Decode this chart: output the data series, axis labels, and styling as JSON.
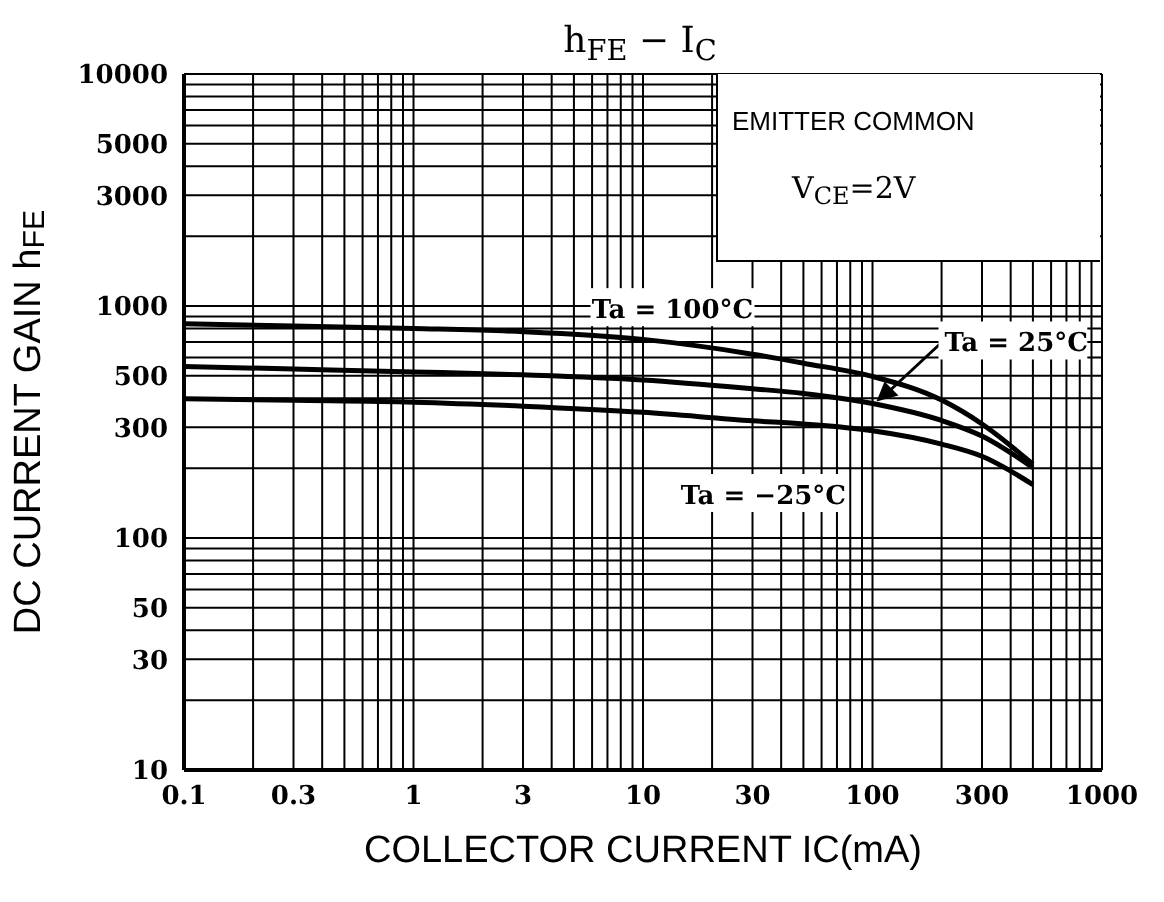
{
  "chart_data": {
    "type": "line",
    "title": "h$_{FE}$ − I$_{C}$",
    "xlabel": "COLLECTOR CURRENT IC(mA)",
    "ylabel": "DC CURRENT GAIN h$_{FE}$",
    "annotations": [
      "EMITTER COMMON",
      "V$_{CE}$=2V"
    ],
    "x": [
      0.1,
      0.3,
      1,
      3,
      10,
      30,
      50,
      100,
      200,
      300,
      500
    ],
    "series": [
      {
        "name": "Ta = 100°C",
        "color": "#000000",
        "values": [
          838,
          820,
          800,
          775,
          718,
          620,
          567,
          497,
          393,
          310,
          208
        ]
      },
      {
        "name": "Ta = 25°C",
        "color": "#000000",
        "values": [
          549,
          535,
          520,
          505,
          480,
          440,
          420,
          380,
          321,
          275,
          201
        ]
      },
      {
        "name": "Ta = −25°C",
        "color": "#000000",
        "values": [
          398,
          392,
          385,
          370,
          348,
          320,
          310,
          290,
          254,
          225,
          170
        ]
      }
    ],
    "log": "xy",
    "xlim": [
      0.1,
      1000
    ],
    "ylim": [
      10,
      10000
    ],
    "xticks": [
      0.1,
      {
        "value": 0.2,
        "label": null
      },
      0.3,
      {
        "value": 0.4,
        "label": null
      },
      {
        "value": 0.5,
        "label": null
      },
      {
        "value": 0.6,
        "label": null
      },
      {
        "value": 0.7,
        "label": null
      },
      {
        "value": 0.8,
        "label": null
      },
      {
        "value": 0.9,
        "label": null
      },
      1,
      {
        "value": 2,
        "label": null
      },
      3,
      {
        "value": 4,
        "label": null
      },
      {
        "value": 5,
        "label": null
      },
      {
        "value": 6,
        "label": null
      },
      {
        "value": 7,
        "label": null
      },
      {
        "value": 8,
        "label": null
      },
      {
        "value": 9,
        "label": null
      },
      10,
      {
        "value": 20,
        "label": null
      },
      30,
      {
        "value": 40,
        "label": null
      },
      {
        "value": 50,
        "label": null
      },
      {
        "value": 60,
        "label": null
      },
      {
        "value": 70,
        "label": null
      },
      {
        "value": 80,
        "label": null
      },
      {
        "value": 90,
        "label": null
      },
      100,
      {
        "value": 200,
        "label": null
      },
      300,
      {
        "value": 400,
        "label": null
      },
      {
        "value": 500,
        "label": null
      },
      {
        "value": 600,
        "label": null
      },
      {
        "value": 700,
        "label": null
      },
      {
        "value": 800,
        "label": null
      },
      {
        "value": 900,
        "label": null
      },
      1000
    ],
    "yticks": [
      10,
      {
        "value": 20,
        "label": null
      },
      30,
      {
        "value": 40,
        "label": null
      },
      50,
      {
        "value": 60,
        "label": null
      },
      {
        "value": 70,
        "label": null
      },
      {
        "value": 80,
        "label": null
      },
      {
        "value": 90,
        "label": null
      },
      100,
      {
        "value": 200,
        "label": null
      },
      300,
      {
        "value": 400,
        "label": null
      },
      500,
      {
        "value": 600,
        "label": null
      },
      {
        "value": 700,
        "label": null
      },
      {
        "value": 800,
        "label": null
      },
      {
        "value": 900,
        "label": null
      },
      1000,
      {
        "value": 2000,
        "label": null
      },
      3000,
      {
        "value": 4000,
        "label": null
      },
      5000,
      {
        "value": 6000,
        "label": null
      },
      {
        "value": 7000,
        "label": null
      },
      {
        "value": 8000,
        "label": null
      },
      {
        "value": 9000,
        "label": null
      },
      10000
    ],
    "grid": true,
    "marker": "none",
    "line_style": "solid",
    "legend": false
  }
}
